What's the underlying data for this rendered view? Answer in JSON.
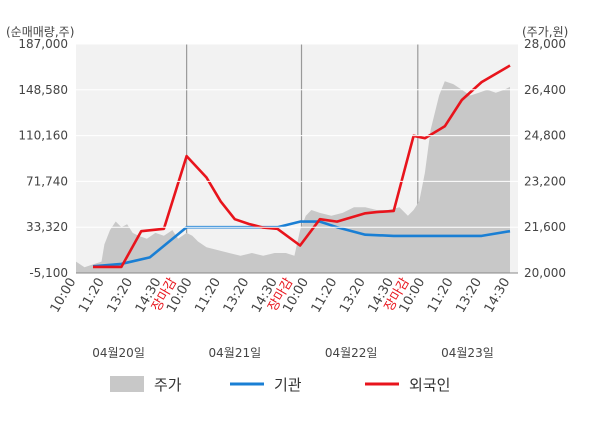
{
  "chart_data": {
    "type": "line",
    "left_axis": {
      "unit_label": "(순매매량,주)",
      "ticks": [
        "187,000",
        "148,580",
        "110,160",
        "71,740",
        "33,320",
        "-5,100"
      ],
      "tick_values": [
        187000,
        148580,
        110160,
        71740,
        33320,
        -5100
      ],
      "ylim": [
        -5100,
        187000
      ]
    },
    "right_axis": {
      "unit_label": "(주가,원)",
      "ticks": [
        "28,000",
        "26,400",
        "24,800",
        "23,200",
        "21,600",
        "20,000"
      ],
      "tick_values": [
        28000,
        26400,
        24800,
        23200,
        21600,
        20000
      ],
      "ylim": [
        20000,
        28000
      ]
    },
    "x_ticks": [
      {
        "label": "10:00",
        "pos": 0.0,
        "red": false
      },
      {
        "label": "11:20",
        "pos": 1.0,
        "red": false
      },
      {
        "label": "13:20",
        "pos": 2.0,
        "red": false
      },
      {
        "label": "14:30",
        "pos": 3.0,
        "red": false
      },
      {
        "label": "장마감",
        "pos": 3.55,
        "red": true
      },
      {
        "label": "10:00",
        "pos": 4.1,
        "red": false
      },
      {
        "label": "11:20",
        "pos": 5.1,
        "red": false
      },
      {
        "label": "13:20",
        "pos": 6.1,
        "red": false
      },
      {
        "label": "14:30",
        "pos": 7.1,
        "red": false
      },
      {
        "label": "장마감",
        "pos": 7.65,
        "red": true
      },
      {
        "label": "10:00",
        "pos": 8.2,
        "red": false
      },
      {
        "label": "11:20",
        "pos": 9.2,
        "red": false
      },
      {
        "label": "13:20",
        "pos": 10.2,
        "red": false
      },
      {
        "label": "14:30",
        "pos": 11.2,
        "red": false
      },
      {
        "label": "장마감",
        "pos": 11.75,
        "red": true
      },
      {
        "label": "10:00",
        "pos": 12.3,
        "red": false
      },
      {
        "label": "11:20",
        "pos": 13.3,
        "red": false
      },
      {
        "label": "13:20",
        "pos": 14.3,
        "red": false
      },
      {
        "label": "14:30",
        "pos": 15.3,
        "red": false
      }
    ],
    "x_range": [
      0,
      15.3
    ],
    "day_separators": [
      3.9,
      7.95,
      12.05
    ],
    "date_labels": [
      {
        "label": "04월20일",
        "pos": 1.5
      },
      {
        "label": "04월21일",
        "pos": 5.6
      },
      {
        "label": "04월22일",
        "pos": 9.7
      },
      {
        "label": "04월23일",
        "pos": 13.8
      }
    ],
    "series": [
      {
        "name": "주가",
        "axis": "right",
        "color": "#c8c8c8",
        "kind": "area",
        "x": [
          0,
          0.3,
          0.6,
          0.9,
          1.0,
          1.2,
          1.4,
          1.6,
          1.8,
          2.0,
          2.2,
          2.5,
          2.8,
          3.1,
          3.4,
          3.6,
          3.9,
          4.1,
          4.3,
          4.6,
          5.0,
          5.4,
          5.8,
          6.2,
          6.6,
          7.0,
          7.4,
          7.7,
          7.9,
          8.1,
          8.3,
          8.6,
          9.0,
          9.4,
          9.8,
          10.2,
          10.6,
          11.0,
          11.4,
          11.7,
          11.9,
          12.1,
          12.3,
          12.5,
          12.8,
          13.0,
          13.3,
          13.6,
          13.9,
          14.2,
          14.5,
          14.8,
          15.1,
          15.3
        ],
        "y": [
          20400,
          20200,
          20300,
          20400,
          21000,
          21500,
          21800,
          21600,
          21700,
          21400,
          21300,
          21200,
          21400,
          21300,
          21500,
          21200,
          21400,
          21300,
          21100,
          20900,
          20800,
          20700,
          20600,
          20700,
          20600,
          20700,
          20700,
          20600,
          21500,
          22000,
          22200,
          22100,
          22000,
          22100,
          22300,
          22300,
          22200,
          22200,
          22300,
          22000,
          22200,
          22500,
          23500,
          25000,
          26200,
          26700,
          26600,
          26400,
          26200,
          26300,
          26400,
          26300,
          26400,
          26500
        ]
      },
      {
        "name": "기관",
        "axis": "left",
        "color": "#1a7fd4",
        "kind": "line",
        "x": [
          0.6,
          1.6,
          2.6,
          3.9,
          5.1,
          6.1,
          7.1,
          7.9,
          8.6,
          9.2,
          10.2,
          11.2,
          12.3,
          13.3,
          14.3,
          15.3
        ],
        "y": [
          500,
          2500,
          8000,
          33300,
          33300,
          33300,
          33300,
          38000,
          38000,
          33300,
          27000,
          26000,
          26000,
          26000,
          26000,
          30000
        ]
      },
      {
        "name": "외국인",
        "axis": "left",
        "color": "#e8141c",
        "kind": "line",
        "x": [
          0.6,
          1.6,
          2.3,
          3.1,
          3.9,
          4.6,
          5.1,
          5.6,
          6.1,
          6.6,
          7.1,
          7.9,
          8.6,
          9.2,
          10.2,
          10.6,
          11.2,
          11.9,
          12.3,
          13.0,
          13.6,
          14.3,
          15.3
        ],
        "y": [
          0,
          0,
          30000,
          32000,
          93000,
          75000,
          55000,
          40000,
          36000,
          33000,
          32000,
          18000,
          40000,
          38000,
          45000,
          46000,
          47000,
          110000,
          108000,
          118000,
          140000,
          155000,
          169000
        ]
      }
    ],
    "legend": [
      "주가",
      "기관",
      "외국인"
    ]
  }
}
